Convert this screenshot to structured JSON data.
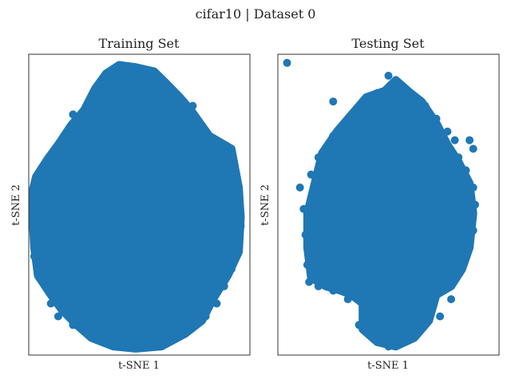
{
  "figure": {
    "suptitle": "cifar10 | Dataset 0"
  },
  "chart_data": [
    {
      "type": "scatter",
      "title": "Training Set",
      "xlabel": "t-SNE 1",
      "ylabel": "t-SNE 2",
      "xlim": [
        -60,
        60
      ],
      "ylim": [
        -70,
        70
      ],
      "ticks_visible": false,
      "grid": false,
      "marker_color": "#1f77b4",
      "cloud": {
        "outline": [
          [
            -11,
            65
          ],
          [
            -2,
            64
          ],
          [
            8,
            62
          ],
          [
            14,
            57
          ],
          [
            22,
            50
          ],
          [
            28,
            44
          ],
          [
            38,
            32
          ],
          [
            50,
            26
          ],
          [
            54,
            8
          ],
          [
            55,
            -6
          ],
          [
            54,
            -22
          ],
          [
            48,
            -33
          ],
          [
            40,
            -44
          ],
          [
            34,
            -54
          ],
          [
            25,
            -60
          ],
          [
            12,
            -66
          ],
          [
            -2,
            -67
          ],
          [
            -14,
            -66
          ],
          [
            -26,
            -62
          ],
          [
            -34,
            -56
          ],
          [
            -42,
            -49
          ],
          [
            -48,
            -42
          ],
          [
            -55,
            -33
          ],
          [
            -57,
            -20
          ],
          [
            -58,
            -5
          ],
          [
            -58,
            6
          ],
          [
            -56,
            13
          ],
          [
            -50,
            21
          ],
          [
            -44,
            28
          ],
          [
            -37,
            37
          ],
          [
            -30,
            44
          ],
          [
            -24,
            54
          ],
          [
            -18,
            61
          ]
        ],
        "edge_points": [
          [
            -57,
            8
          ],
          [
            -56,
            -18
          ],
          [
            -55,
            -30
          ],
          [
            -54,
            4
          ],
          [
            54,
            -6
          ],
          [
            55,
            -10
          ],
          [
            52,
            6
          ],
          [
            50,
            14
          ],
          [
            47,
            24
          ],
          [
            45,
            28
          ],
          [
            -40,
            30
          ],
          [
            -46,
            22
          ],
          [
            -48,
            16
          ],
          [
            -36,
            42
          ],
          [
            -28,
            46
          ],
          [
            -22,
            52
          ],
          [
            -14,
            60
          ],
          [
            -4,
            63
          ],
          [
            4,
            62
          ],
          [
            10,
            59
          ],
          [
            18,
            52
          ],
          [
            24,
            48
          ],
          [
            29,
            46
          ],
          [
            36,
            34
          ],
          [
            40,
            31
          ],
          [
            -42,
            -42
          ],
          [
            -50,
            -38
          ],
          [
            -36,
            -56
          ],
          [
            -30,
            -58
          ],
          [
            -20,
            -63
          ],
          [
            -10,
            -66
          ],
          [
            0,
            -66
          ],
          [
            10,
            -64
          ],
          [
            18,
            -62
          ],
          [
            28,
            -58
          ],
          [
            36,
            -52
          ],
          [
            42,
            -46
          ],
          [
            46,
            -38
          ],
          [
            50,
            -30
          ],
          [
            53,
            -20
          ],
          [
            -58,
            -8
          ],
          [
            -57,
            -24
          ],
          [
            22,
            40
          ],
          [
            -44,
            -52
          ],
          [
            -48,
            -46
          ]
        ]
      }
    },
    {
      "type": "scatter",
      "title": "Testing Set",
      "xlabel": "t-SNE 1",
      "ylabel": "t-SNE 2",
      "xlim": [
        -60,
        60
      ],
      "ylim": [
        -70,
        70
      ],
      "ticks_visible": false,
      "grid": false,
      "marker_color": "#1f77b4",
      "outlier_points": [
        [
          -55,
          66
        ]
      ],
      "cloud": {
        "outline": [
          [
            -2,
            53
          ],
          [
            4,
            58
          ],
          [
            12,
            52
          ],
          [
            18,
            48
          ],
          [
            26,
            38
          ],
          [
            32,
            28
          ],
          [
            38,
            20
          ],
          [
            44,
            10
          ],
          [
            46,
            -4
          ],
          [
            44,
            -20
          ],
          [
            40,
            -30
          ],
          [
            34,
            -38
          ],
          [
            26,
            -42
          ],
          [
            22,
            -54
          ],
          [
            14,
            -62
          ],
          [
            4,
            -66
          ],
          [
            -6,
            -64
          ],
          [
            -14,
            -58
          ],
          [
            -14,
            -46
          ],
          [
            -20,
            -42
          ],
          [
            -26,
            -40
          ],
          [
            -34,
            -38
          ],
          [
            -42,
            -34
          ],
          [
            -44,
            -20
          ],
          [
            -44,
            -4
          ],
          [
            -40,
            10
          ],
          [
            -36,
            24
          ],
          [
            -28,
            34
          ],
          [
            -20,
            42
          ],
          [
            -12,
            50
          ]
        ],
        "edge_points": [
          [
            -48,
            8
          ],
          [
            -46,
            -2
          ],
          [
            -45,
            -14
          ],
          [
            -44,
            -28
          ],
          [
            -43,
            -36
          ],
          [
            -38,
            -38
          ],
          [
            -30,
            -40
          ],
          [
            -22,
            -44
          ],
          [
            -16,
            -56
          ],
          [
            -8,
            -62
          ],
          [
            0,
            -66
          ],
          [
            8,
            -64
          ],
          [
            16,
            -60
          ],
          [
            20,
            -56
          ],
          [
            24,
            -48
          ],
          [
            30,
            -40
          ],
          [
            36,
            -34
          ],
          [
            42,
            -24
          ],
          [
            46,
            -12
          ],
          [
            47,
            0
          ],
          [
            46,
            8
          ],
          [
            42,
            16
          ],
          [
            38,
            22
          ],
          [
            36,
            30
          ],
          [
            32,
            34
          ],
          [
            26,
            40
          ],
          [
            20,
            46
          ],
          [
            14,
            50
          ],
          [
            6,
            56
          ],
          [
            0,
            60
          ],
          [
            -6,
            52
          ],
          [
            -14,
            48
          ],
          [
            -22,
            40
          ],
          [
            -30,
            32
          ],
          [
            -38,
            22
          ],
          [
            -42,
            14
          ],
          [
            -30,
            48
          ],
          [
            46,
            26
          ],
          [
            44,
            30
          ],
          [
            -26,
            -30
          ],
          [
            -6,
            -34
          ],
          [
            -12,
            -40
          ],
          [
            34,
            -44
          ],
          [
            28,
            -52
          ]
        ]
      }
    }
  ]
}
